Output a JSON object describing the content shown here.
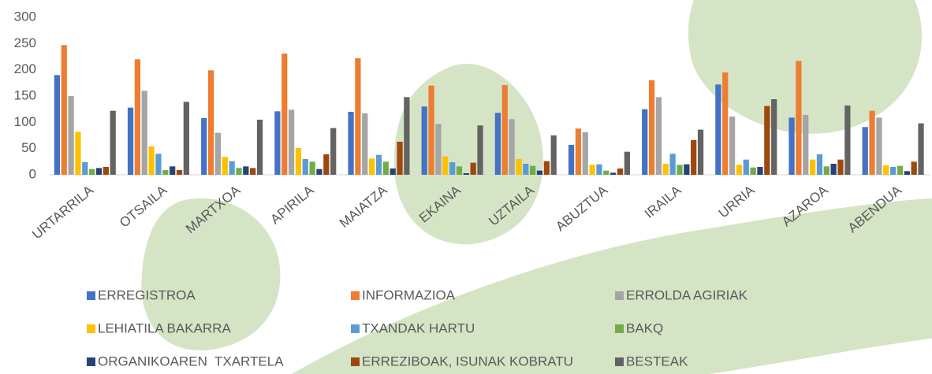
{
  "chart_data": {
    "type": "bar",
    "categories": [
      "URTARRILA",
      "OTSAILA",
      "MARTXOA",
      "APIRILA",
      "MAIATZA",
      "EKAINA",
      "UZTAILA",
      "ABUZTUA",
      "IRAILA",
      "URRIA",
      "AZAROA",
      "ABENDUA"
    ],
    "series": [
      {
        "name": "ERREGISTROA",
        "color": "#4472c4",
        "values": [
          190,
          128,
          108,
          121,
          120,
          130,
          118,
          57,
          125,
          172,
          109,
          91
        ]
      },
      {
        "name": "INFORMAZIOA",
        "color": "#ed7d31",
        "values": [
          247,
          220,
          199,
          231,
          222,
          170,
          171,
          88,
          180,
          195,
          217,
          122
        ]
      },
      {
        "name": "ERROLDA AGIRIAK",
        "color": "#a5a5a5",
        "values": [
          150,
          160,
          80,
          124,
          117,
          97,
          106,
          81,
          148,
          111,
          114,
          109
        ]
      },
      {
        "name": "LEHIATILA BAKARRA",
        "color": "#ffc000",
        "values": [
          82,
          54,
          34,
          51,
          31,
          35,
          30,
          19,
          21,
          19,
          29,
          18
        ]
      },
      {
        "name": "TXANDAK HARTU",
        "color": "#5b9bd5",
        "values": [
          24,
          40,
          26,
          30,
          38,
          24,
          21,
          20,
          40,
          29,
          39,
          15
        ]
      },
      {
        "name": "BAKQ",
        "color": "#70ad47",
        "values": [
          11,
          9,
          13,
          25,
          25,
          16,
          17,
          8,
          19,
          14,
          16,
          17
        ]
      },
      {
        "name": "ORGANIKOAREN  TXARTELA",
        "color": "#264478",
        "values": [
          13,
          16,
          16,
          11,
          12,
          3,
          8,
          4,
          20,
          15,
          21,
          7
        ]
      },
      {
        "name": "ERREZIBOAK, ISUNAK KOBRATU",
        "color": "#9e480e",
        "values": [
          15,
          9,
          13,
          39,
          63,
          23,
          26,
          12,
          66,
          131,
          29,
          25
        ]
      },
      {
        "name": "BESTEAK",
        "color": "#636363",
        "values": [
          122,
          139,
          105,
          89,
          148,
          94,
          75,
          44,
          86,
          144,
          132,
          98
        ]
      }
    ],
    "ylim": [
      0,
      300
    ],
    "yticks": [
      0,
      50,
      100,
      150,
      200,
      250,
      300
    ],
    "grid": false
  }
}
